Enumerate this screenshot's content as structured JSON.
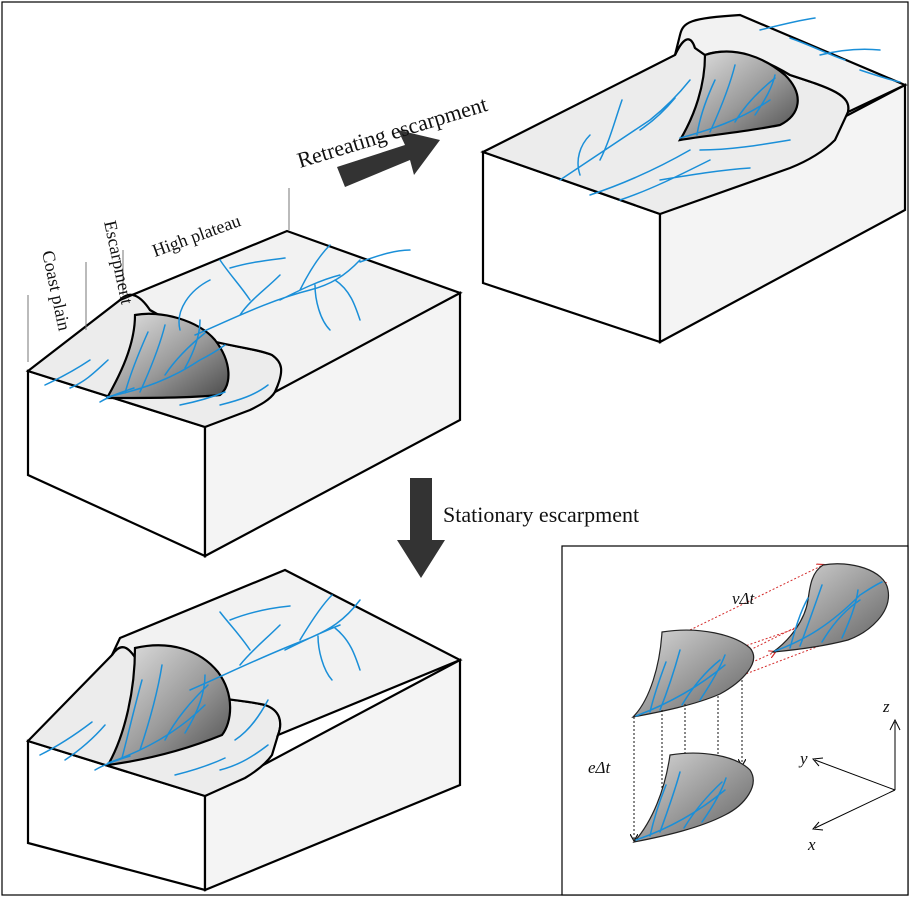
{
  "labels": {
    "coast_plain": "Coast plain",
    "escarpment": "Escarpment",
    "high_plateau": "High plateau",
    "retreating": "Retreating escarpment",
    "stationary": "Stationary escarpment",
    "v_dt": "vΔt",
    "e_dt": "eΔt",
    "axis_x": "x",
    "axis_y": "y",
    "axis_z": "z"
  },
  "colors": {
    "river": "#1a8fd8",
    "arrow": "#333333",
    "retreat_dots": "#d42a2a"
  },
  "icons": [
    "retreat-arrow-icon",
    "stationary-arrow-icon",
    "axis-triad-icon"
  ]
}
